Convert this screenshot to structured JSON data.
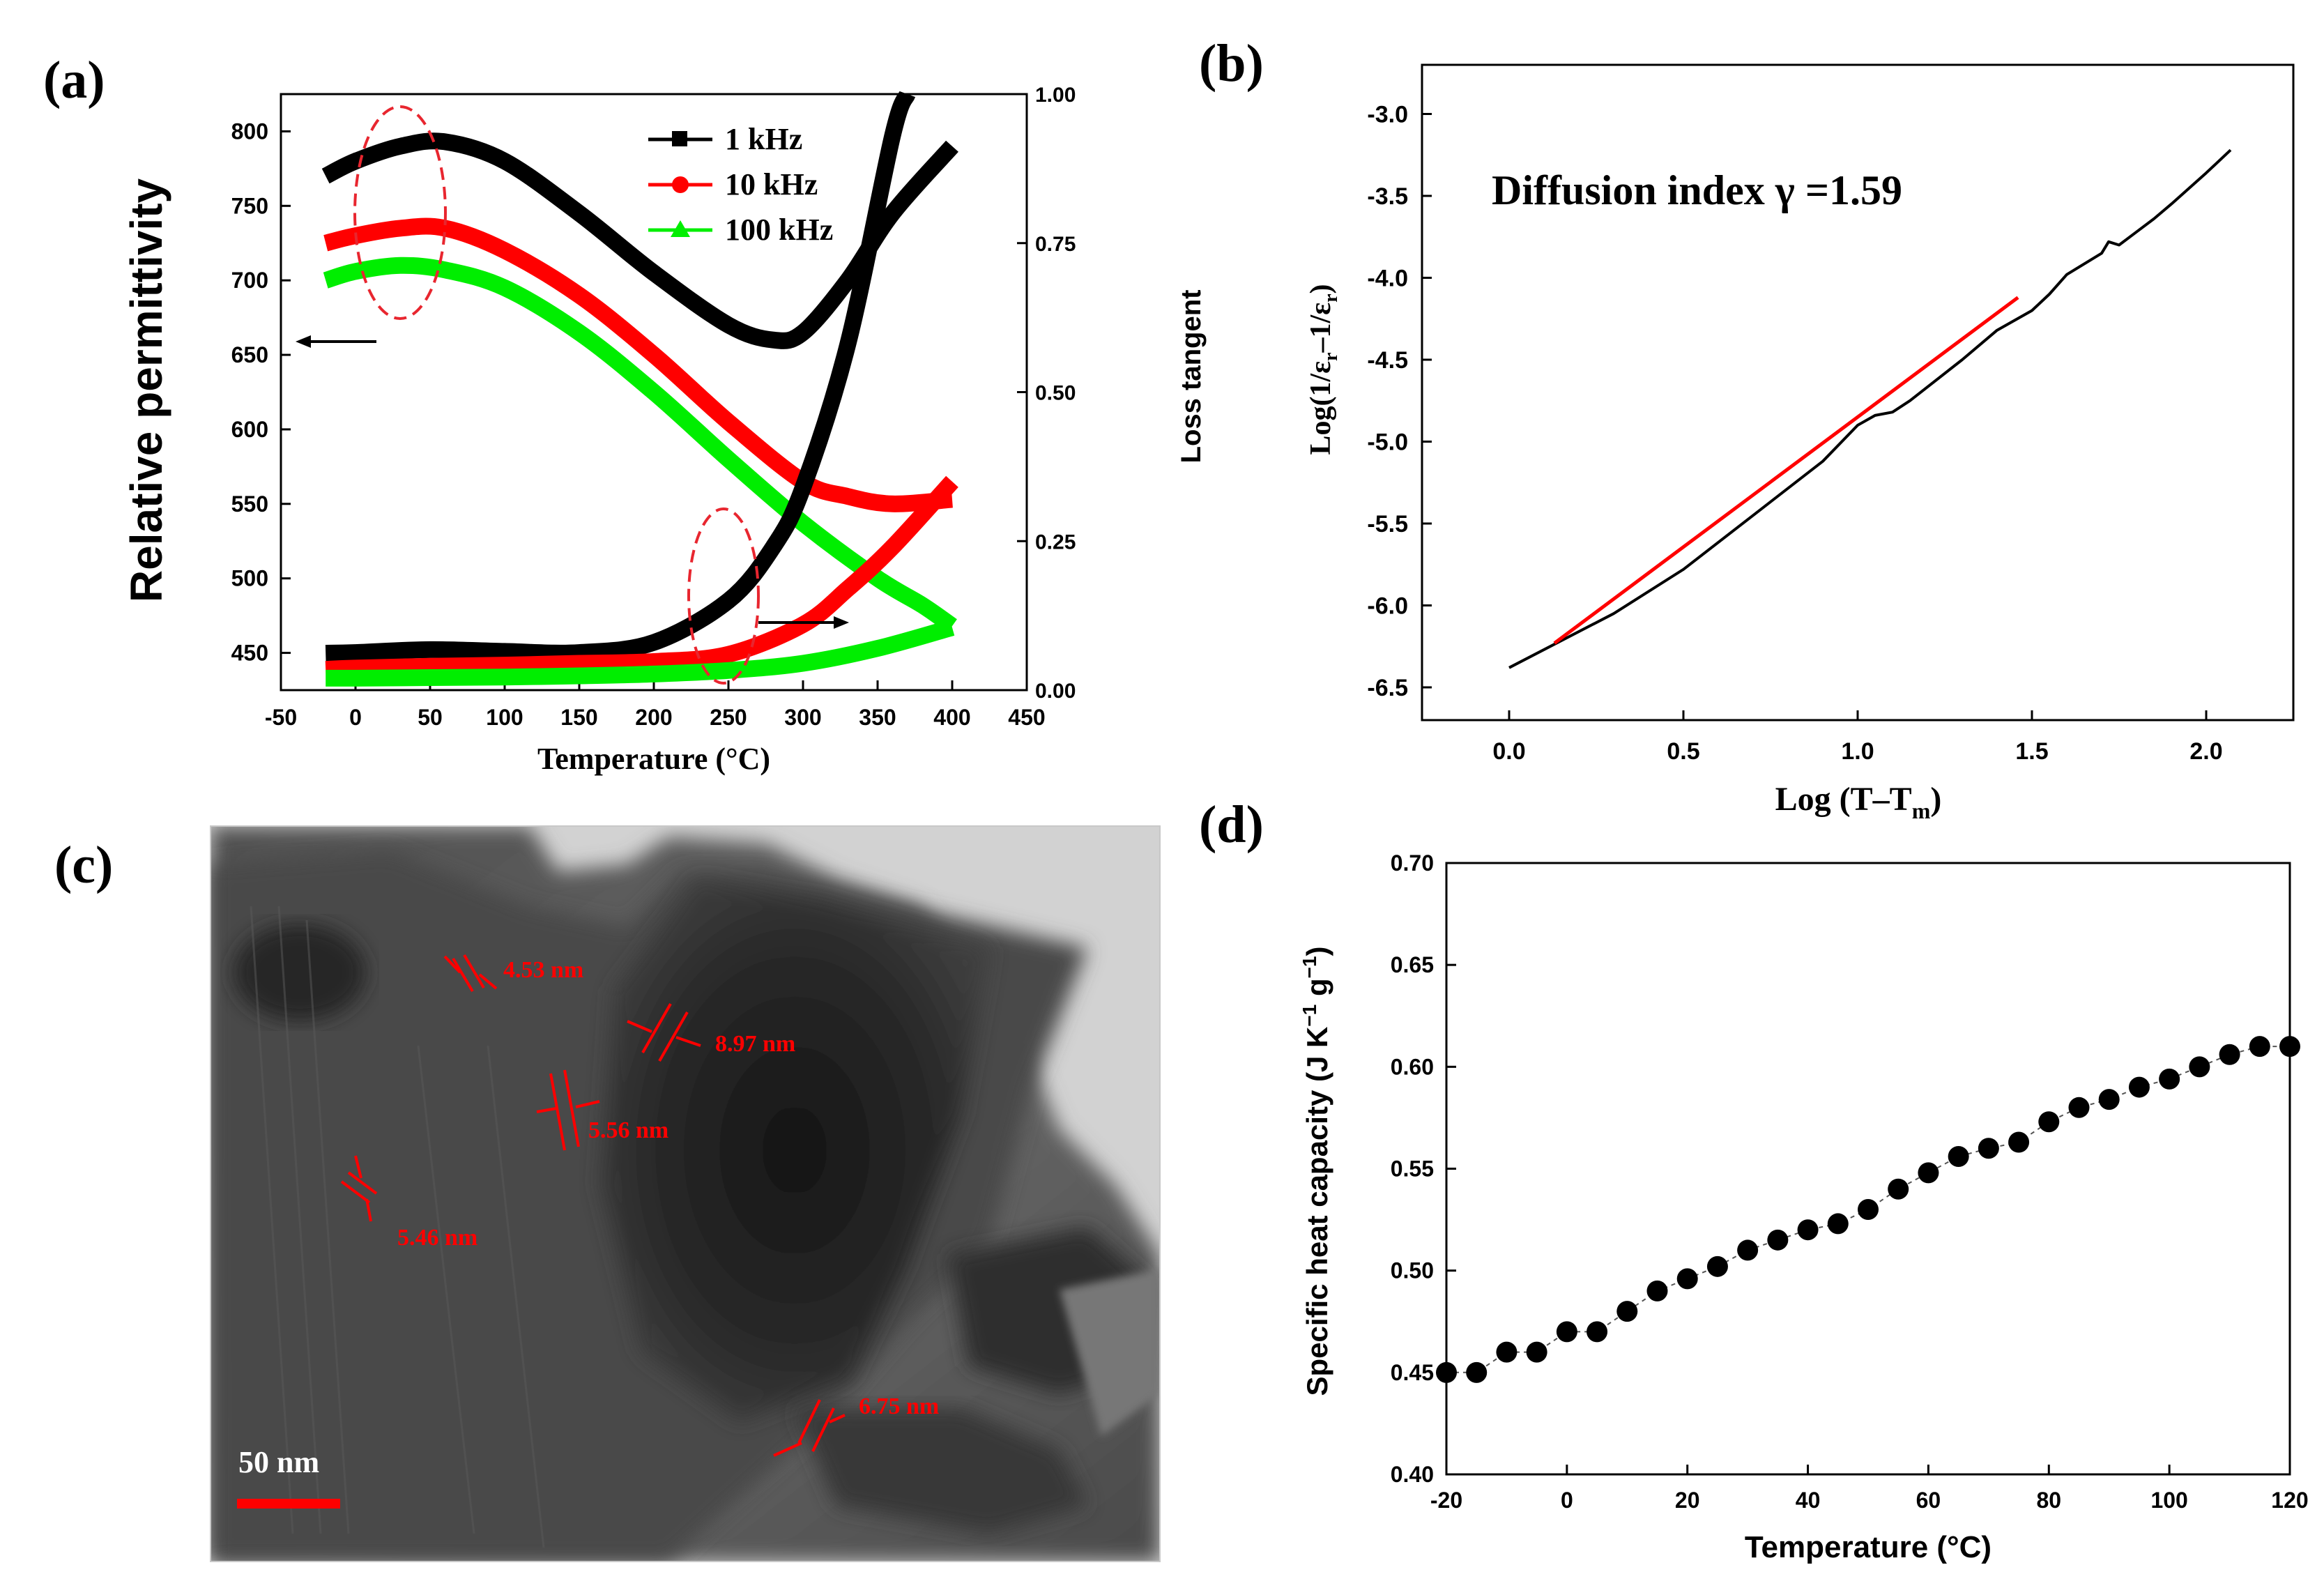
{
  "colors": {
    "k": "#000000",
    "r": "#ff0000",
    "g": "#00ee00",
    "dash": "#e8262f",
    "scale": "#ff0000"
  },
  "chart_data": [
    {
      "panel": "(a)",
      "type": "line",
      "xlabel": "Temperature (°C)",
      "ylabel": "Relative permittivity",
      "y2label": "Loss tangent",
      "xlim": [
        -50,
        450
      ],
      "ylim": [
        425,
        825
      ],
      "y2lim": [
        0,
        1
      ],
      "xticks": [
        "-50",
        "0",
        "50",
        "100",
        "150",
        "200",
        "250",
        "300",
        "350",
        "400",
        "450"
      ],
      "yticks": [
        "450",
        "500",
        "550",
        "600",
        "650",
        "700",
        "750",
        "800"
      ],
      "y2ticks": [
        "0.00",
        "0.25",
        "0.50",
        "0.75",
        "1.00"
      ],
      "legend": [
        "1 kHz",
        "10 kHz",
        "100 kHz"
      ],
      "series": [
        {
          "name": "1 kHz",
          "color": "#000000",
          "axis": "left",
          "x": [
            -20,
            0,
            30,
            60,
            100,
            150,
            200,
            250,
            280,
            300,
            330,
            360,
            400
          ],
          "y": [
            770,
            780,
            790,
            793,
            780,
            745,
            705,
            670,
            660,
            665,
            700,
            745,
            790
          ]
        },
        {
          "name": "10 kHz",
          "color": "#ff0000",
          "axis": "left",
          "x": [
            -20,
            0,
            30,
            60,
            100,
            150,
            200,
            250,
            300,
            330,
            360,
            400
          ],
          "y": [
            725,
            730,
            735,
            735,
            720,
            690,
            650,
            605,
            565,
            555,
            550,
            553
          ]
        },
        {
          "name": "100 kHz",
          "color": "#00ee00",
          "axis": "left",
          "x": [
            -20,
            0,
            30,
            60,
            100,
            150,
            200,
            250,
            300,
            350,
            380,
            400
          ],
          "y": [
            700,
            706,
            710,
            707,
            695,
            665,
            625,
            580,
            537,
            500,
            482,
            468
          ]
        },
        {
          "name": "1 kHz",
          "color": "#000000",
          "axis": "right",
          "x": [
            -20,
            0,
            50,
            100,
            150,
            200,
            250,
            280,
            300,
            330,
            360,
            370
          ],
          "y": [
            0.062,
            0.063,
            0.068,
            0.065,
            0.063,
            0.08,
            0.15,
            0.24,
            0.34,
            0.58,
            0.93,
            1.0
          ]
        },
        {
          "name": "10 kHz",
          "color": "#ff0000",
          "axis": "right",
          "x": [
            -20,
            0,
            50,
            100,
            150,
            200,
            250,
            300,
            330,
            360,
            400
          ],
          "y": [
            0.035,
            0.037,
            0.04,
            0.042,
            0.045,
            0.048,
            0.06,
            0.11,
            0.17,
            0.24,
            0.35
          ]
        },
        {
          "name": "100 kHz",
          "color": "#00ee00",
          "axis": "right",
          "x": [
            -20,
            0,
            50,
            100,
            150,
            200,
            250,
            300,
            350,
            400
          ],
          "y": [
            0.02,
            0.02,
            0.021,
            0.022,
            0.024,
            0.027,
            0.033,
            0.045,
            0.07,
            0.105
          ]
        }
      ]
    },
    {
      "panel": "(b)",
      "type": "line",
      "xlabel": "Log (T–T",
      "xlabel_sub": "m",
      "xlabel_end": ")",
      "ylabel": "Log(1/ε",
      "ylabel_sub": "r",
      "ylabel_mid": "–1/ε",
      "ylabel_end": ")",
      "xlim": [
        -0.25,
        2.25
      ],
      "ylim": [
        -6.7,
        -2.7
      ],
      "xticks": [
        "0.0",
        "0.5",
        "1.0",
        "1.5",
        "2.0"
      ],
      "yticks": [
        "-6.5",
        "-6.0",
        "-5.5",
        "-5.0",
        "-4.5",
        "-4.0",
        "-3.5",
        "-3.0"
      ],
      "annotation": "Diffusion index γ =1.59",
      "series": [
        {
          "name": "data",
          "color": "#000000",
          "x": [
            0,
            0.3,
            0.5,
            0.7,
            0.9,
            1.0,
            1.05,
            1.1,
            1.15,
            1.3,
            1.4,
            1.5,
            1.55,
            1.6,
            1.7,
            1.72,
            1.75,
            1.8,
            1.85,
            1.9,
            2.0,
            2.07
          ],
          "y": [
            -6.38,
            -6.05,
            -5.78,
            -5.45,
            -5.12,
            -4.9,
            -4.84,
            -4.82,
            -4.75,
            -4.5,
            -4.32,
            -4.2,
            -4.1,
            -3.98,
            -3.85,
            -3.78,
            -3.8,
            -3.72,
            -3.64,
            -3.55,
            -3.36,
            -3.22
          ]
        },
        {
          "name": "fit",
          "color": "#ff0000",
          "x": [
            0.13,
            1.46
          ],
          "y": [
            -6.23,
            -4.12
          ]
        }
      ]
    },
    {
      "panel": "(c)",
      "type": "image",
      "scale_bar": "50 nm",
      "labels": [
        "4.53 nm",
        "8.97 nm",
        "5.56 nm",
        "5.46 nm",
        "6.75 nm"
      ]
    },
    {
      "panel": "(d)",
      "type": "scatter",
      "xlabel": "Temperature (°C)",
      "ylabel": "Specific heat capacity (J K",
      "ylabel_sup1": "−1",
      "ylabel_mid": " g",
      "ylabel_sup2": "−1",
      "ylabel_end": ")",
      "xlim": [
        -20,
        120
      ],
      "ylim": [
        0.4,
        0.7
      ],
      "xticks": [
        "-20",
        "0",
        "20",
        "40",
        "60",
        "80",
        "100",
        "120"
      ],
      "yticks": [
        "0.40",
        "0.45",
        "0.50",
        "0.55",
        "0.60",
        "0.65",
        "0.70"
      ],
      "x": [
        -20,
        -15,
        -10,
        -5,
        0,
        5,
        10,
        15,
        20,
        25,
        30,
        35,
        40,
        45,
        50,
        55,
        60,
        65,
        70,
        75,
        80,
        85,
        90,
        95,
        100,
        105,
        110,
        115,
        120
      ],
      "y": [
        0.45,
        0.45,
        0.46,
        0.46,
        0.47,
        0.47,
        0.48,
        0.49,
        0.496,
        0.502,
        0.51,
        0.515,
        0.52,
        0.523,
        0.53,
        0.54,
        0.548,
        0.556,
        0.56,
        0.563,
        0.573,
        0.58,
        0.584,
        0.59,
        0.594,
        0.6,
        0.606,
        0.61,
        0.61
      ]
    }
  ]
}
